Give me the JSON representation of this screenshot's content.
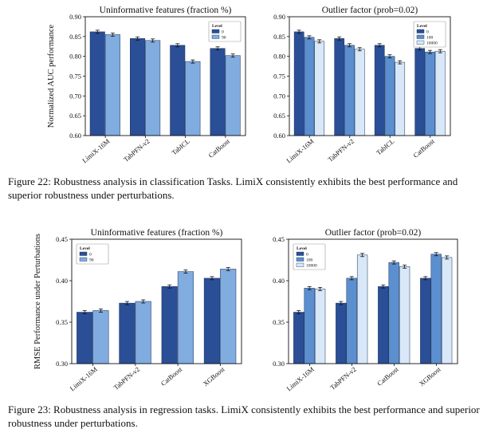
{
  "colors": {
    "level_0": "#2b4f96",
    "level_1": "#80acdf",
    "level_2": "#d8e8f8",
    "level_mid": "#5b8fcf"
  },
  "captions": {
    "figure22": "Figure 22: Robustness analysis in classification Tasks. LimiX consistently exhibits the best performance and superior robustness under perturbations.",
    "figure23": "Figure 23: Robustness analysis in regression tasks. LimiX consistently exhibits the best performance and superior robustness under perturbations."
  },
  "chart_data": [
    {
      "type": "bar",
      "title": "Uninformative features (fraction %)",
      "ylabel": "Normalized AUC performance",
      "xlabel": "",
      "ylim": [
        0.6,
        0.9
      ],
      "yticks": [
        "0.60",
        "0.65",
        "0.70",
        "0.75",
        "0.80",
        "0.85",
        "0.90"
      ],
      "categories": [
        "LimiX-16M",
        "TabPFN-v2",
        "TabICL",
        "CatBoost"
      ],
      "legend_title": "Level",
      "legend_position": "top-right",
      "grid": false,
      "series": [
        {
          "name": "0",
          "values": [
            0.862,
            0.845,
            0.828,
            0.82
          ]
        },
        {
          "name": "90",
          "values": [
            0.855,
            0.84,
            0.787,
            0.802
          ]
        }
      ]
    },
    {
      "type": "bar",
      "title": "Outlier factor (prob=0.02)",
      "ylabel": "",
      "xlabel": "",
      "ylim": [
        0.6,
        0.9
      ],
      "yticks": [
        "0.60",
        "0.65",
        "0.70",
        "0.75",
        "0.80",
        "0.85",
        "0.90"
      ],
      "categories": [
        "LimiX-16M",
        "TabPFN-v2",
        "TabICL",
        "CatBoost"
      ],
      "legend_title": "Level",
      "legend_position": "top-right",
      "grid": false,
      "series": [
        {
          "name": "0",
          "values": [
            0.862,
            0.845,
            0.828,
            0.82
          ]
        },
        {
          "name": "100",
          "values": [
            0.848,
            0.828,
            0.8,
            0.811
          ]
        },
        {
          "name": "10000",
          "values": [
            0.838,
            0.818,
            0.785,
            0.813
          ]
        }
      ]
    },
    {
      "type": "bar",
      "title": "Uninformative features (fraction %)",
      "ylabel": "RMSE Performance under Perturbations",
      "xlabel": "",
      "ylim": [
        0.3,
        0.45
      ],
      "yticks": [
        "0.30",
        "0.35",
        "0.40",
        "0.45"
      ],
      "categories": [
        "LimiX-16M",
        "TabPFN-v2",
        "CatBoost",
        "XGBoost"
      ],
      "legend_title": "Level",
      "legend_position": "top-left",
      "grid": false,
      "series": [
        {
          "name": "0",
          "values": [
            0.362,
            0.373,
            0.393,
            0.403
          ]
        },
        {
          "name": "90",
          "values": [
            0.364,
            0.375,
            0.411,
            0.414
          ]
        }
      ]
    },
    {
      "type": "bar",
      "title": "Outlier factor (prob=0.02)",
      "ylabel": "",
      "xlabel": "",
      "ylim": [
        0.3,
        0.45
      ],
      "yticks": [
        "0.30",
        "0.35",
        "0.40",
        "0.45"
      ],
      "categories": [
        "LimiX-16M",
        "TabPFN-v2",
        "CatBoost",
        "XGBoost"
      ],
      "legend_title": "Level",
      "legend_position": "top-left",
      "grid": false,
      "series": [
        {
          "name": "0",
          "values": [
            0.362,
            0.373,
            0.393,
            0.403
          ]
        },
        {
          "name": "100",
          "values": [
            0.391,
            0.403,
            0.422,
            0.432
          ]
        },
        {
          "name": "10000",
          "values": [
            0.39,
            0.431,
            0.417,
            0.428
          ]
        }
      ]
    }
  ]
}
